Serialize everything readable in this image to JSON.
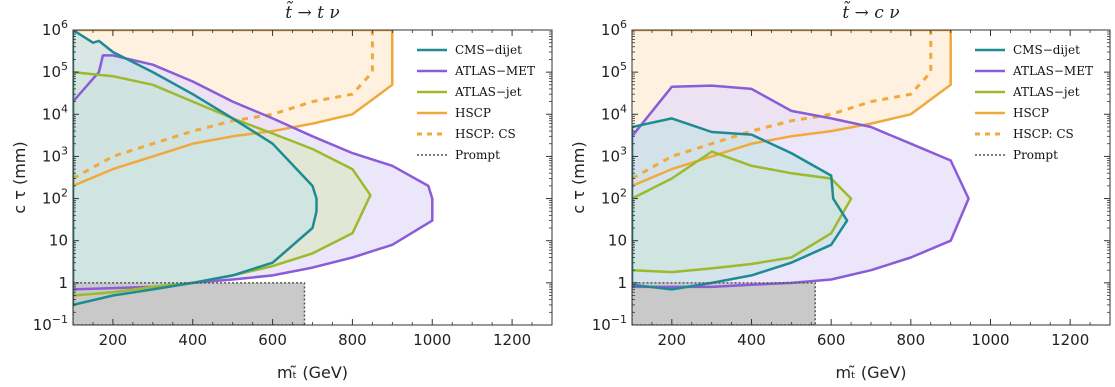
{
  "chart_data": [
    {
      "type": "area",
      "title": "t̃ → t ν",
      "xlabel": "mₜ̃ (GeV)",
      "ylabel": "c τ (mm)",
      "xlim": [
        100,
        1300
      ],
      "ylim": [
        0.1,
        1000000
      ],
      "yscale": "log",
      "xticks": [
        200,
        400,
        600,
        800,
        1000,
        1200
      ],
      "xtick_labels": [
        "200",
        "400",
        "600",
        "800",
        "1000",
        "1200"
      ],
      "yticks": [
        0.1,
        1,
        10,
        100,
        1000,
        10000,
        100000,
        1000000
      ],
      "ytick_labels": [
        [
          "10",
          "−1"
        ],
        [
          "1",
          ""
        ],
        [
          "10",
          ""
        ],
        [
          "10",
          "2"
        ],
        [
          "10",
          "3"
        ],
        [
          "10",
          "4"
        ],
        [
          "10",
          "5"
        ],
        [
          "10",
          "6"
        ]
      ],
      "legend_position": "top-right",
      "series": [
        {
          "name": "HSCP",
          "style": "solid",
          "color": "#F0A93B",
          "fill": "#FDEBD3",
          "x": [
            100,
            200,
            300,
            400,
            500,
            600,
            700,
            800,
            900,
            900,
            100
          ],
          "y": [
            200,
            500,
            1000,
            2000,
            3000,
            4000,
            6000,
            10000,
            50000,
            1000000,
            1000000
          ]
        },
        {
          "name": "HSCP: CS",
          "style": "dashed",
          "color": "#F0A93B",
          "fill": "none",
          "x": [
            100,
            200,
            300,
            400,
            500,
            600,
            700,
            800,
            850,
            850
          ],
          "y": [
            300,
            1000,
            2000,
            4000,
            7000,
            10000,
            20000,
            30000,
            100000,
            1000000
          ]
        },
        {
          "name": "ATLAS−MET",
          "style": "solid",
          "color": "#8A5CD8",
          "fill": "#E4DBFA",
          "x": [
            100,
            165,
            175,
            200,
            300,
            400,
            500,
            600,
            700,
            800,
            900,
            990,
            1000,
            1000,
            900,
            800,
            700,
            600,
            500,
            400,
            300,
            200,
            100
          ],
          "y": [
            20000,
            100000,
            250000,
            250000,
            150000,
            60000,
            20000,
            8000,
            3000,
            1200,
            600,
            200,
            100,
            30,
            8,
            4,
            2.3,
            1.5,
            1.2,
            1.0,
            0.8,
            0.75,
            0.7
          ]
        },
        {
          "name": "ATLAS−jet",
          "style": "solid",
          "color": "#9DB92C",
          "fill": "#DDE5C5",
          "x": [
            100,
            200,
            300,
            400,
            500,
            600,
            700,
            800,
            845,
            800,
            700,
            600,
            500,
            400,
            300,
            200,
            100
          ],
          "y": [
            100000,
            80000,
            50000,
            20000,
            8000,
            3500,
            1500,
            500,
            120,
            15,
            5,
            2.5,
            1.5,
            1.0,
            0.8,
            0.6,
            0.5
          ]
        },
        {
          "name": "CMS−dijet",
          "style": "solid",
          "color": "#1E8B94",
          "fill": "#C9E3E6",
          "x": [
            100,
            150,
            165,
            200,
            300,
            400,
            500,
            600,
            700,
            710,
            710,
            700,
            600,
            500,
            400,
            300,
            200,
            100
          ],
          "y": [
            1000000,
            500000,
            550000,
            300000,
            100000,
            30000,
            8000,
            2000,
            200,
            100,
            50,
            20,
            3,
            1.5,
            1.0,
            0.7,
            0.5,
            0.3
          ]
        },
        {
          "name": "Prompt",
          "style": "dotted",
          "color": "#555555",
          "fill": "#C9C9C9",
          "x": [
            100,
            680,
            680,
            100
          ],
          "y": [
            0.1,
            0.1,
            1,
            1
          ]
        }
      ]
    },
    {
      "type": "area",
      "title": "t̃ → c ν",
      "xlabel": "mₜ̃ (GeV)",
      "ylabel": "c τ (mm)",
      "xlim": [
        100,
        1300
      ],
      "ylim": [
        0.1,
        1000000
      ],
      "yscale": "log",
      "xticks": [
        200,
        400,
        600,
        800,
        1000,
        1200
      ],
      "xtick_labels": [
        "200",
        "400",
        "600",
        "800",
        "1000",
        "1200"
      ],
      "yticks": [
        0.1,
        1,
        10,
        100,
        1000,
        10000,
        100000,
        1000000
      ],
      "ytick_labels": [
        [
          "10",
          "−1"
        ],
        [
          "1",
          ""
        ],
        [
          "10",
          ""
        ],
        [
          "10",
          "2"
        ],
        [
          "10",
          "3"
        ],
        [
          "10",
          "4"
        ],
        [
          "10",
          "5"
        ],
        [
          "10",
          "6"
        ]
      ],
      "legend_position": "top-right",
      "series": [
        {
          "name": "HSCP",
          "style": "solid",
          "color": "#F0A93B",
          "fill": "#FDEBD3",
          "x": [
            100,
            200,
            300,
            400,
            500,
            600,
            700,
            800,
            900,
            900,
            100
          ],
          "y": [
            200,
            500,
            1000,
            2000,
            3000,
            4000,
            6000,
            10000,
            50000,
            1000000,
            1000000
          ]
        },
        {
          "name": "HSCP: CS",
          "style": "dashed",
          "color": "#F0A93B",
          "fill": "none",
          "x": [
            100,
            200,
            300,
            400,
            500,
            600,
            700,
            800,
            850,
            850
          ],
          "y": [
            300,
            1000,
            2000,
            4000,
            7000,
            10000,
            20000,
            30000,
            100000,
            1000000
          ]
        },
        {
          "name": "ATLAS−MET",
          "style": "solid",
          "color": "#8A5CD8",
          "fill": "#E4DBFA",
          "x": [
            100,
            200,
            300,
            400,
            500,
            600,
            700,
            800,
            900,
            945,
            900,
            800,
            700,
            600,
            500,
            400,
            300,
            200,
            100
          ],
          "y": [
            3000,
            45000,
            48000,
            40000,
            12000,
            8000,
            5000,
            2000,
            800,
            100,
            10,
            4,
            2,
            1.2,
            1.0,
            0.9,
            0.8,
            0.8,
            0.8
          ]
        },
        {
          "name": "ATLAS−jet",
          "style": "solid",
          "color": "#9DB92C",
          "fill": "#DDE5C5",
          "x": [
            100,
            200,
            300,
            400,
            500,
            600,
            650,
            600,
            500,
            400,
            300,
            200,
            100
          ],
          "y": [
            100,
            300,
            1300,
            600,
            400,
            300,
            100,
            15,
            4,
            2.8,
            2.2,
            1.8,
            2
          ]
        },
        {
          "name": "CMS−dijet",
          "style": "solid",
          "color": "#1E8B94",
          "fill": "#C9E3E6",
          "x": [
            100,
            200,
            300,
            400,
            500,
            600,
            605,
            640,
            600,
            500,
            400,
            300,
            200,
            100
          ],
          "y": [
            5000,
            8000,
            3800,
            3300,
            1200,
            350,
            100,
            30,
            8,
            3,
            1.5,
            1.0,
            0.7,
            0.9
          ]
        },
        {
          "name": "Prompt",
          "style": "dotted",
          "color": "#555555",
          "fill": "#C9C9C9",
          "x": [
            100,
            560,
            560,
            100
          ],
          "y": [
            0.1,
            0.1,
            1,
            1
          ]
        }
      ]
    }
  ]
}
